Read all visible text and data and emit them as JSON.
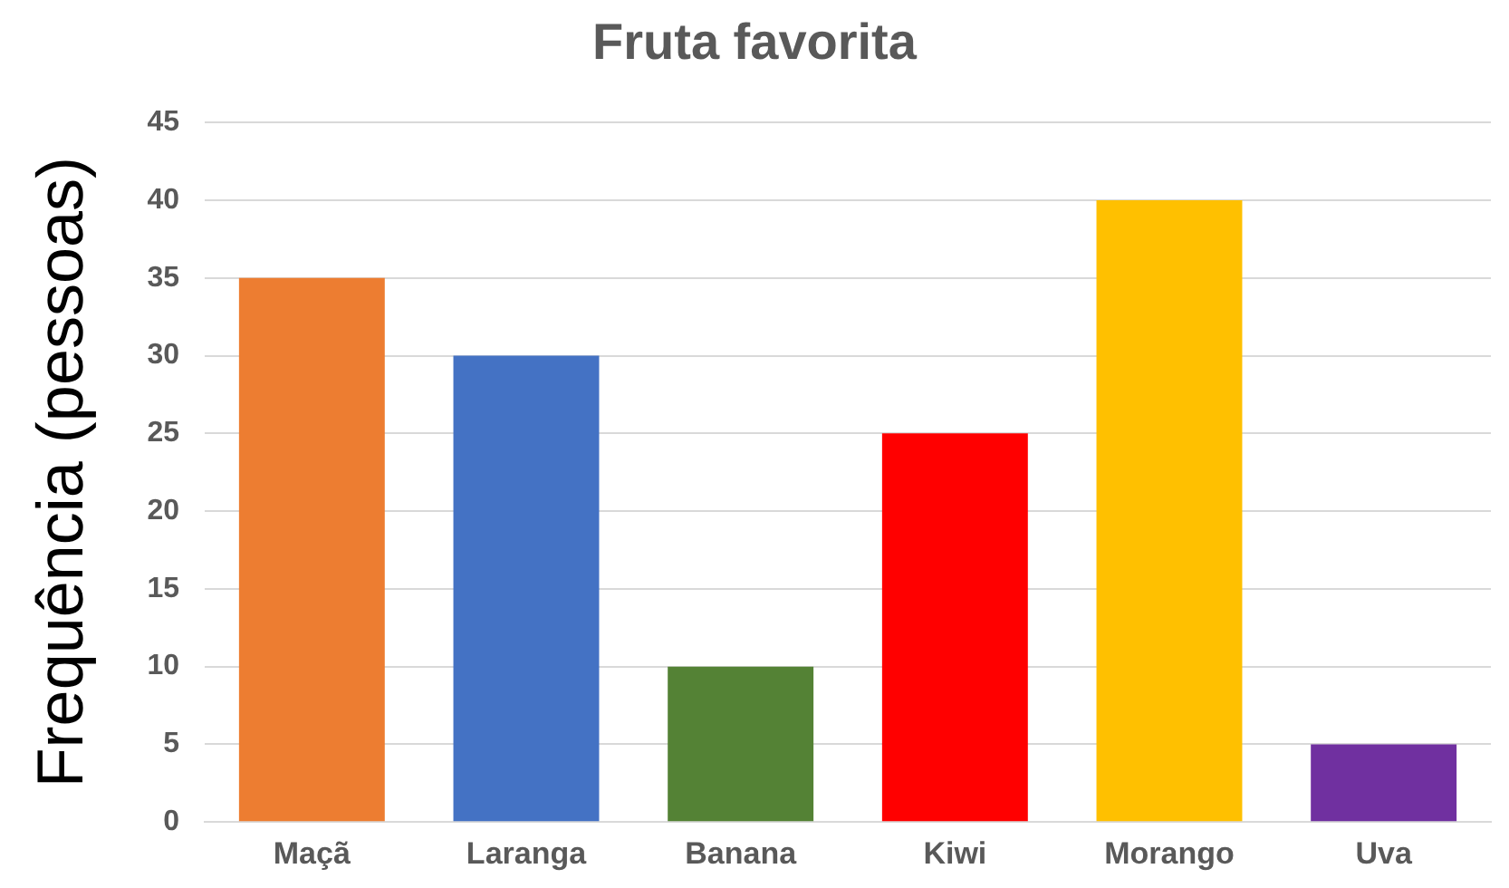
{
  "chart_data": {
    "type": "bar",
    "title": "Fruta favorita",
    "ylabel": "Frequência (pessoas)",
    "categories": [
      "Maçã",
      "Laranga",
      "Banana",
      "Kiwi",
      "Morango",
      "Uva"
    ],
    "values": [
      35,
      30,
      10,
      25,
      40,
      5
    ],
    "colors": [
      "#ed7d31",
      "#4472c4",
      "#548235",
      "#ff0000",
      "#ffc000",
      "#7030a0"
    ],
    "ylim": [
      0,
      45
    ],
    "yticks": [
      0,
      5,
      10,
      15,
      20,
      25,
      30,
      35,
      40,
      45
    ],
    "grid": "y",
    "legend": false
  }
}
